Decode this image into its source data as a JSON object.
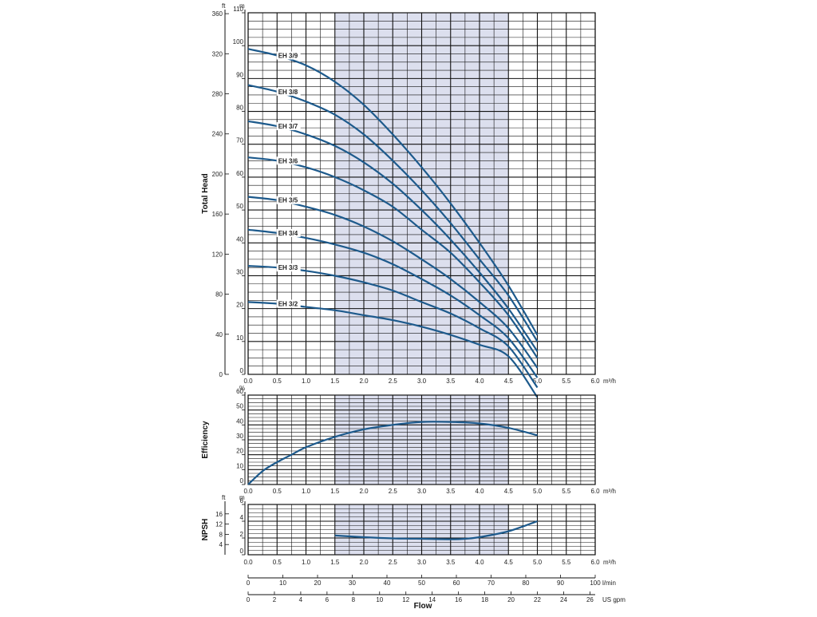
{
  "chart_data": {
    "type": "line",
    "x_unit": "m³/h",
    "x_ticks": [
      "0.0",
      "0.5",
      "1.0",
      "1.5",
      "2.0",
      "2.5",
      "3.0",
      "3.5",
      "4.0",
      "4.5",
      "5.0",
      "5.5",
      "6.0"
    ],
    "x_range": [
      0,
      6
    ],
    "highlight_range": [
      1.5,
      4.5
    ],
    "colors": {
      "curve": "#1d5a8c",
      "highlight": "#dcdfee",
      "grid": "#111111"
    },
    "panels": [
      {
        "id": "head",
        "ylabel": "Total Head",
        "y_unit_left": "ft",
        "y_unit_right": "m",
        "y_range": [
          0,
          110
        ],
        "y_ticks_m": [
          0,
          10,
          20,
          30,
          40,
          50,
          60,
          70,
          80,
          90,
          100,
          110
        ],
        "y_ticks_ft": [
          0,
          40,
          80,
          120,
          160,
          200,
          240,
          280,
          320,
          360
        ],
        "series": [
          {
            "name": "EH 3/9",
            "x": [
              0,
              0.5,
              1,
              1.5,
              2,
              2.5,
              3,
              3.5,
              4,
              4.5,
              5
            ],
            "values": [
              99,
              97,
              94,
              89,
              82,
              73,
              63,
              52,
              40,
              27,
              12
            ]
          },
          {
            "name": "EH 3/8",
            "x": [
              0,
              0.5,
              1,
              1.5,
              2,
              2.5,
              3,
              3.5,
              4,
              4.5,
              5
            ],
            "values": [
              88,
              86,
              83,
              79,
              73,
              65,
              56,
              46,
              35,
              24,
              10
            ]
          },
          {
            "name": "EH 3/7",
            "x": [
              0,
              0.5,
              1,
              1.5,
              2,
              2.5,
              3,
              3.5,
              4,
              4.5,
              5
            ],
            "values": [
              77,
              75.5,
              73,
              69.5,
              64.5,
              58,
              50,
              41,
              31,
              20,
              7
            ]
          },
          {
            "name": "EH 3/6",
            "x": [
              0,
              0.5,
              1,
              1.5,
              2,
              2.5,
              3,
              3.5,
              4,
              4.5,
              5
            ],
            "values": [
              66,
              65,
              63,
              60,
              56,
              51,
              44,
              37,
              28,
              18,
              5
            ]
          },
          {
            "name": "EH 3/5",
            "x": [
              0,
              0.5,
              1,
              1.5,
              2,
              2.5,
              3,
              3.5,
              4,
              4.5,
              5
            ],
            "values": [
              54,
              53,
              51,
              48.5,
              45,
              40.5,
              35,
              29,
              22,
              14,
              2
            ]
          },
          {
            "name": "EH 3/4",
            "x": [
              0,
              0.5,
              1,
              1.5,
              2,
              2.5,
              3,
              3.5,
              4,
              4.5,
              5
            ],
            "values": [
              44,
              43,
              41.5,
              39.5,
              37,
              33.5,
              29,
              24,
              18,
              11,
              -1
            ]
          },
          {
            "name": "EH 3/3",
            "x": [
              0,
              0.5,
              1,
              1.5,
              2,
              2.5,
              3,
              3.5,
              4,
              4.5,
              5
            ],
            "values": [
              33,
              32.5,
              31.5,
              30,
              28,
              25.5,
              22,
              18.5,
              14,
              8.5,
              -4
            ]
          },
          {
            "name": "EH 3/2",
            "x": [
              0,
              0.5,
              1,
              1.5,
              2,
              2.5,
              3,
              3.5,
              4,
              4.5,
              5
            ],
            "values": [
              22,
              21.5,
              20.5,
              19.5,
              18,
              16.5,
              14.5,
              12,
              9,
              5.5,
              -7
            ]
          }
        ]
      },
      {
        "id": "efficiency",
        "ylabel": "Efficiency",
        "y_unit_right": "%",
        "y_range": [
          0,
          60
        ],
        "y_ticks": [
          0,
          10,
          20,
          30,
          40,
          50,
          60
        ],
        "series": [
          {
            "x": [
              0,
              0.25,
              0.5,
              0.75,
              1,
              1.5,
              2,
              2.5,
              3,
              3.5,
              4,
              4.5,
              5
            ],
            "values": [
              0,
              9,
              15,
              20,
              25,
              32,
              37,
              40,
              42,
              42,
              41,
              38,
              33
            ]
          }
        ]
      },
      {
        "id": "npsh",
        "ylabel": "NPSH",
        "y_unit_left": "ft",
        "y_unit_right": "m",
        "y_range": [
          0,
          6
        ],
        "y_ticks_m": [
          0,
          2,
          4,
          6
        ],
        "y_ticks_ft": [
          4,
          8,
          12,
          16
        ],
        "series": [
          {
            "x": [
              1.5,
              2,
              2.5,
              3,
              3.5,
              3.75,
              4,
              4.5,
              5
            ],
            "values": [
              2.3,
              2.1,
              1.95,
              1.9,
              1.85,
              1.9,
              2.1,
              2.8,
              4.0
            ]
          }
        ]
      }
    ],
    "flow_scales": [
      {
        "unit": "l/min",
        "ticks": [
          0,
          10,
          20,
          30,
          40,
          50,
          60,
          70,
          80,
          90,
          100
        ],
        "max": 100
      },
      {
        "unit": "US gpm",
        "ticks": [
          0,
          2,
          4,
          6,
          8,
          10,
          12,
          14,
          16,
          18,
          20,
          22,
          24,
          26
        ],
        "max": 26.4
      }
    ],
    "xlabel": "Flow"
  }
}
